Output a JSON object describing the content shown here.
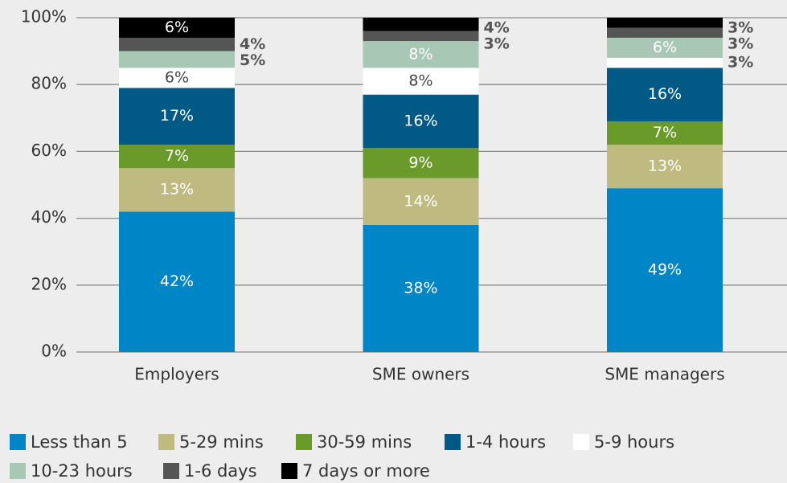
{
  "chart_data": {
    "type": "stacked_bar",
    "categories": [
      "Employers",
      "SME owners",
      "SME managers"
    ],
    "series": [
      {
        "name": "Less than 5",
        "color": "#0085c7",
        "values": [
          42,
          38,
          49
        ],
        "value_labels": [
          "42%",
          "38%",
          "49%"
        ]
      },
      {
        "name": "5-29 mins",
        "color": "#bfbb80",
        "values": [
          13,
          14,
          13
        ],
        "value_labels": [
          "13%",
          "14%",
          "13%"
        ]
      },
      {
        "name": "30-59 mins",
        "color": "#6a9a2a",
        "values": [
          7,
          9,
          7
        ],
        "value_labels": [
          "7%",
          "9%",
          "7%"
        ]
      },
      {
        "name": "1-4 hours",
        "color": "#005a85",
        "values": [
          17,
          16,
          16
        ],
        "value_labels": [
          "17%",
          "16%",
          "16%"
        ]
      },
      {
        "name": "5-9 hours",
        "color": "#ffffff",
        "values": [
          6,
          8,
          3
        ],
        "value_labels": [
          "6%",
          "8%",
          "3%"
        ]
      },
      {
        "name": "10-23 hours",
        "color": "#a8c8b5",
        "values": [
          5,
          8,
          6
        ],
        "value_labels": [
          "5%",
          "8%",
          "6%"
        ]
      },
      {
        "name": "1-6 days",
        "color": "#555555",
        "values": [
          4,
          3,
          3
        ],
        "value_labels": [
          "4%",
          "3%",
          "3%"
        ]
      },
      {
        "name": "7 days or more",
        "color": "#000000",
        "values": [
          6,
          4,
          3
        ],
        "value_labels": [
          "6%",
          "4%",
          "3%"
        ]
      }
    ],
    "ylim": [
      0,
      100
    ],
    "yticks": [
      {
        "value": 0,
        "label": "0%"
      },
      {
        "value": 20,
        "label": "20%"
      },
      {
        "value": 40,
        "label": "40%"
      },
      {
        "value": 60,
        "label": "60%"
      },
      {
        "value": 80,
        "label": "80%"
      },
      {
        "value": 100,
        "label": "100%"
      }
    ],
    "grid": true
  }
}
